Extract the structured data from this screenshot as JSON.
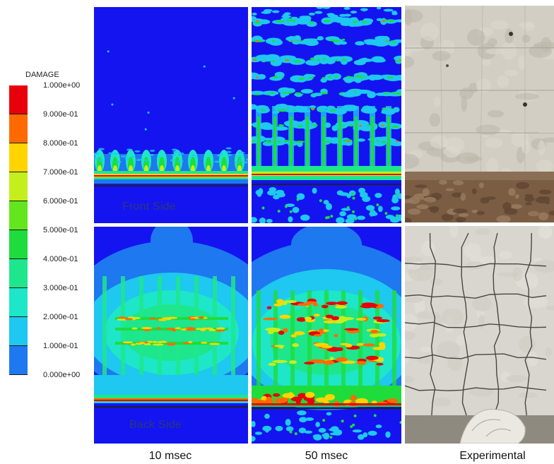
{
  "legend": {
    "title": "DAMAGE",
    "labels": [
      "1.000e+00",
      "9.000e-01",
      "8.000e-01",
      "7.000e-01",
      "6.000e-01",
      "5.000e-01",
      "4.000e-01",
      "3.000e-01",
      "2.000e-01",
      "1.000e-01",
      "0.000e+00"
    ],
    "colors": [
      "#e8000b",
      "#ff6a00",
      "#ffd400",
      "#c4ef1c",
      "#64e61e",
      "#1edc3c",
      "#1ee68c",
      "#1ee6c8",
      "#1ec8f0",
      "#1e78f0",
      "#1414f0"
    ]
  },
  "panels": {
    "front_caption": "Front Side",
    "back_caption": "Back Side"
  },
  "columns": {
    "col1": "10 msec",
    "col2": "50 msec",
    "col3": "Experimental"
  }
}
